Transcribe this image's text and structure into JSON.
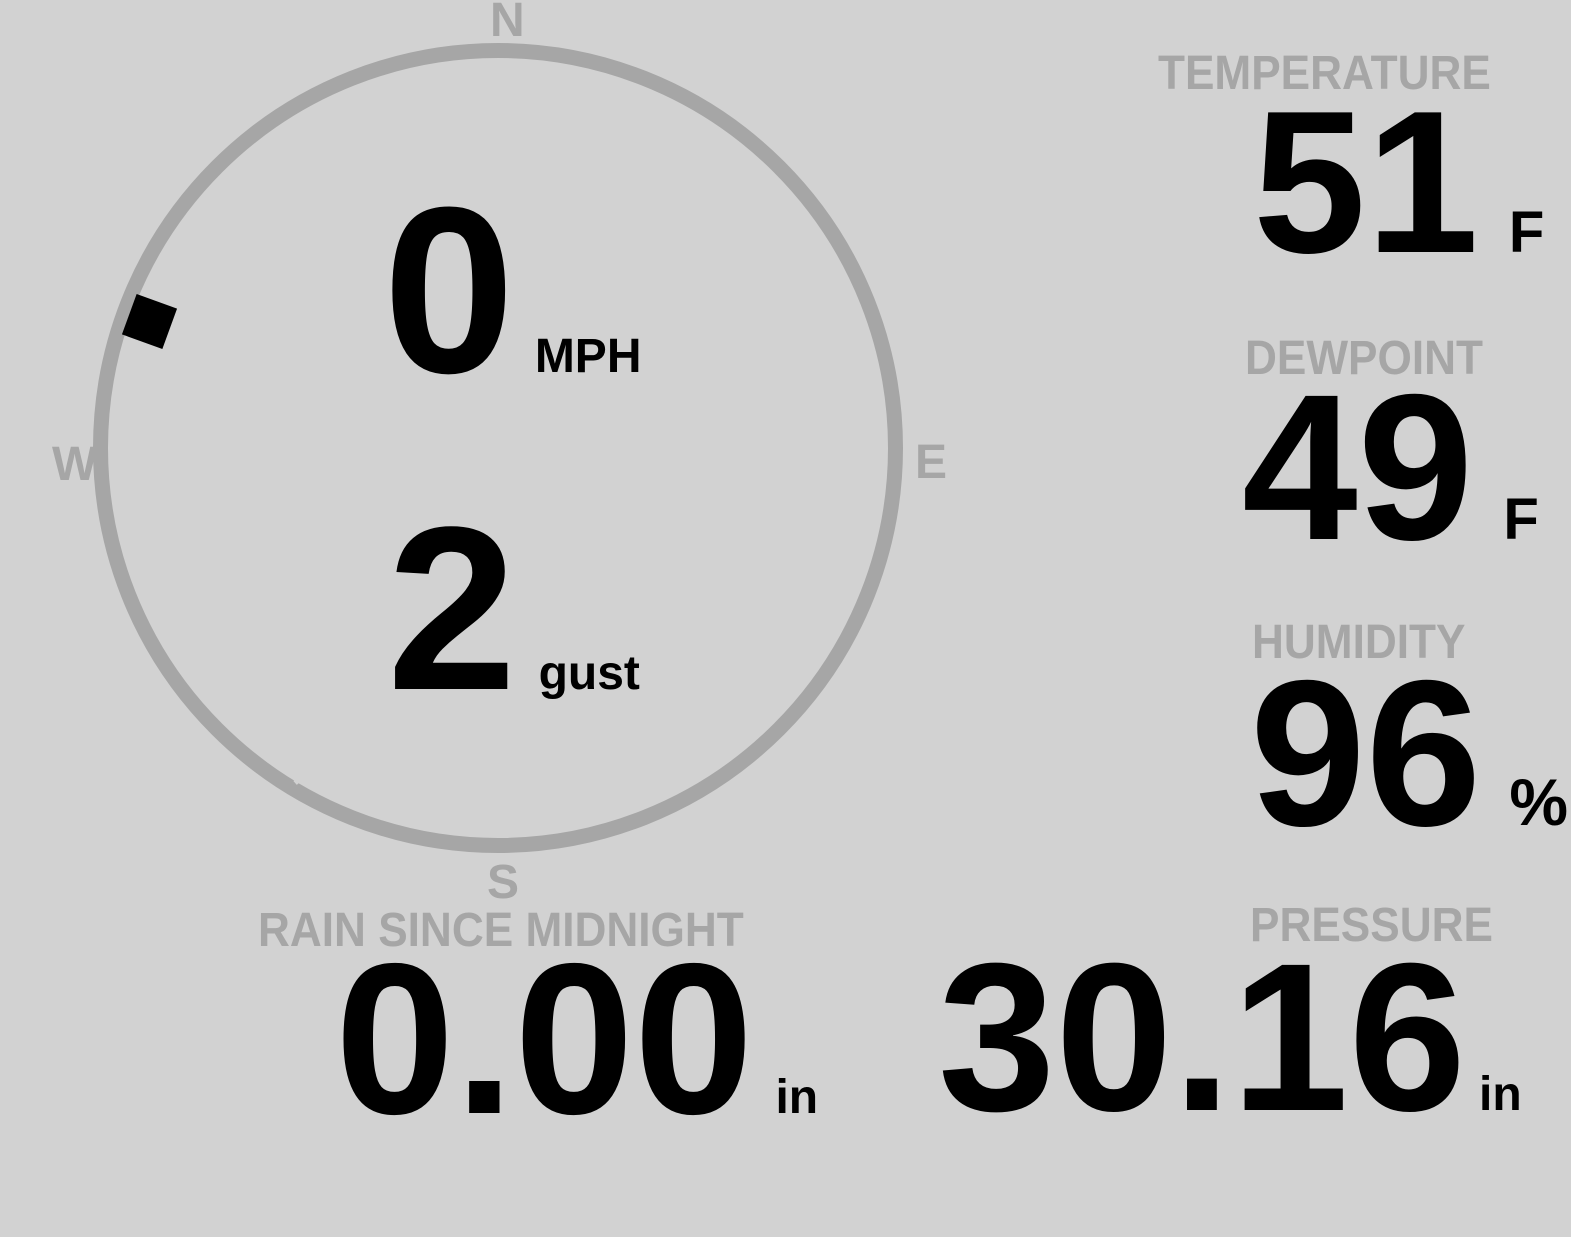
{
  "theme": {
    "background": "#d2d2d2",
    "muted": "#a6a6a6",
    "text": "#000000"
  },
  "wind": {
    "compass": {
      "north": "N",
      "east": "E",
      "south": "S",
      "west": "W"
    },
    "speed": {
      "value": "0",
      "unit": "MPH"
    },
    "gust": {
      "value": "2",
      "unit": "gust"
    },
    "direction_bearing_deg": 290
  },
  "temperature": {
    "label": "TEMPERATURE",
    "value": "51",
    "unit": "F"
  },
  "dewpoint": {
    "label": "DEWPOINT",
    "value": "49",
    "unit": "F"
  },
  "humidity": {
    "label": "HUMIDITY",
    "value": "96",
    "unit": "%"
  },
  "rain_since_midnight": {
    "label": "RAIN SINCE MIDNIGHT",
    "value": "0.00",
    "unit": "in"
  },
  "pressure": {
    "label": "PRESSURE",
    "value": "30.16",
    "unit": "in"
  }
}
